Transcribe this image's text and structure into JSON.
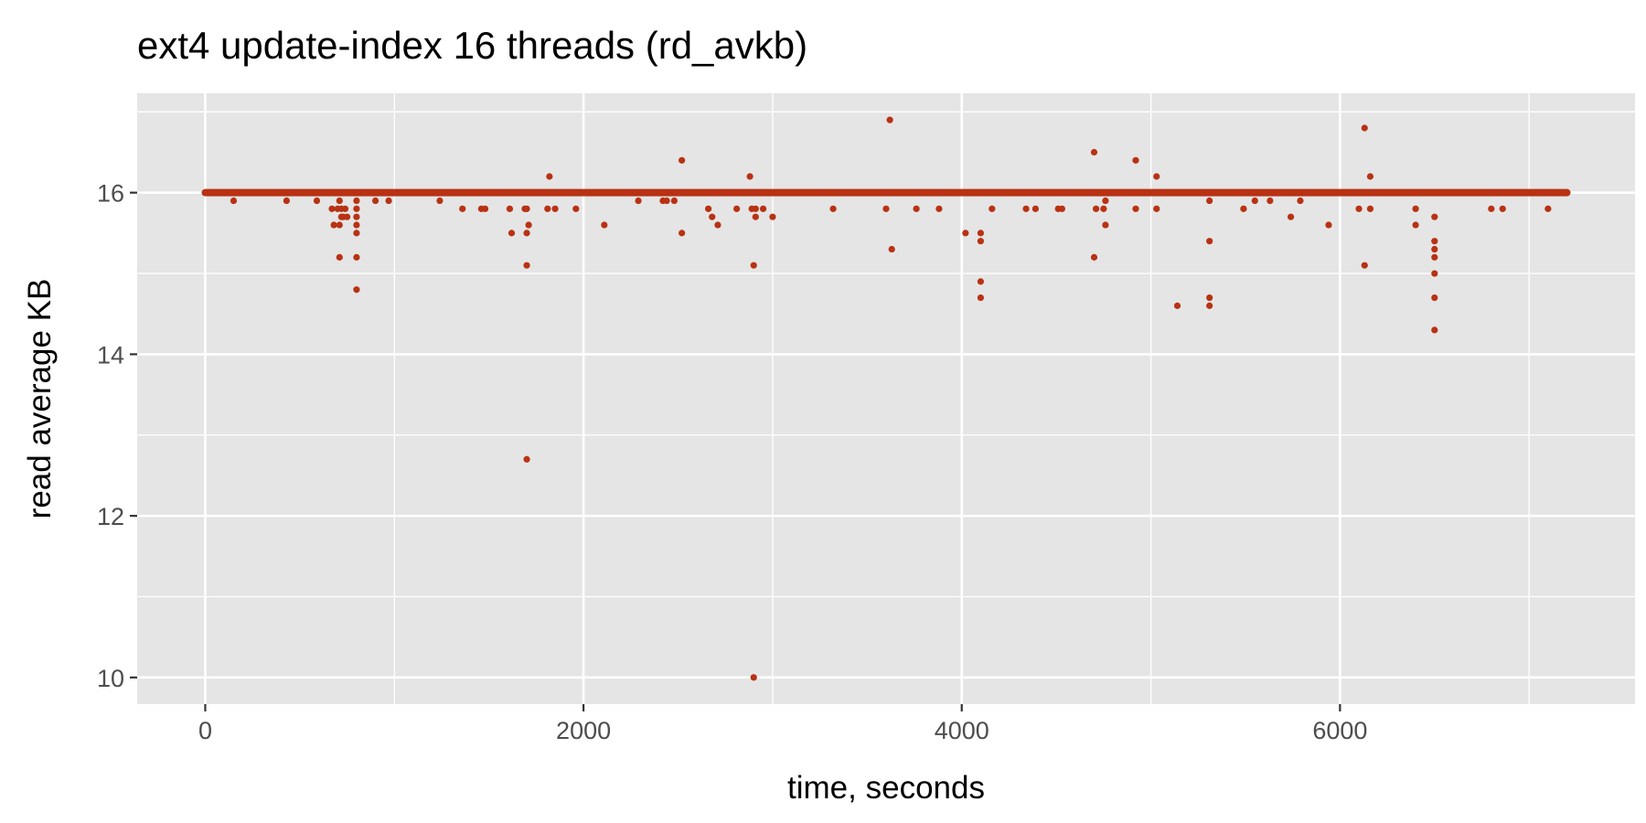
{
  "chart_data": {
    "type": "scatter",
    "title": "ext4 update-index 16 threads (rd_avkb)",
    "xlabel": "time, seconds",
    "ylabel": "read average KB",
    "xlim": [
      -360,
      7560
    ],
    "ylim": [
      9.67,
      17.23
    ],
    "x_ticks": [
      0,
      2000,
      4000,
      6000
    ],
    "y_ticks": [
      10,
      12,
      14,
      16
    ],
    "x_minor_ticks": [
      1000,
      3000,
      5000,
      7000
    ],
    "y_minor_ticks": [
      11,
      13,
      15,
      17
    ],
    "grid": true,
    "legend": "none",
    "colors": {
      "point": "#b83213",
      "panel": "#e5e5e5",
      "grid": "#ffffff"
    },
    "series": [
      {
        "dense_band": {
          "y": 16.0,
          "x_from": 0,
          "x_to": 7200
        },
        "points": [
          [
            150,
            15.9
          ],
          [
            430,
            15.9
          ],
          [
            590,
            15.9
          ],
          [
            670,
            15.8
          ],
          [
            680,
            15.6
          ],
          [
            700,
            15.8
          ],
          [
            710,
            15.6
          ],
          [
            710,
            15.9
          ],
          [
            710,
            15.2
          ],
          [
            720,
            15.8
          ],
          [
            720,
            15.7
          ],
          [
            730,
            15.7
          ],
          [
            740,
            15.8
          ],
          [
            750,
            15.7
          ],
          [
            800,
            15.9
          ],
          [
            800,
            15.8
          ],
          [
            800,
            15.7
          ],
          [
            800,
            15.6
          ],
          [
            800,
            15.5
          ],
          [
            800,
            15.2
          ],
          [
            800,
            14.8
          ],
          [
            900,
            15.9
          ],
          [
            970,
            15.9
          ],
          [
            1240,
            15.9
          ],
          [
            1360,
            15.8
          ],
          [
            1460,
            15.8
          ],
          [
            1480,
            15.8
          ],
          [
            1610,
            15.8
          ],
          [
            1620,
            15.5
          ],
          [
            1690,
            15.8
          ],
          [
            1700,
            15.8
          ],
          [
            1700,
            15.5
          ],
          [
            1700,
            15.1
          ],
          [
            1700,
            12.7
          ],
          [
            1710,
            15.6
          ],
          [
            1810,
            15.8
          ],
          [
            1820,
            16.2
          ],
          [
            1850,
            15.8
          ],
          [
            1960,
            15.8
          ],
          [
            2110,
            15.6
          ],
          [
            2290,
            15.9
          ],
          [
            2420,
            15.9
          ],
          [
            2440,
            15.9
          ],
          [
            2480,
            15.9
          ],
          [
            2520,
            16.4
          ],
          [
            2520,
            15.5
          ],
          [
            2660,
            15.8
          ],
          [
            2680,
            15.7
          ],
          [
            2710,
            15.6
          ],
          [
            2810,
            15.8
          ],
          [
            2880,
            16.2
          ],
          [
            2890,
            15.8
          ],
          [
            2900,
            15.1
          ],
          [
            2900,
            10.0
          ],
          [
            2910,
            15.8
          ],
          [
            2910,
            15.7
          ],
          [
            2950,
            15.8
          ],
          [
            3000,
            15.7
          ],
          [
            3320,
            15.8
          ],
          [
            3600,
            15.8
          ],
          [
            3620,
            16.9
          ],
          [
            3630,
            15.3
          ],
          [
            3760,
            15.8
          ],
          [
            3880,
            15.8
          ],
          [
            4020,
            15.5
          ],
          [
            4100,
            15.5
          ],
          [
            4100,
            15.4
          ],
          [
            4100,
            14.9
          ],
          [
            4100,
            14.7
          ],
          [
            4160,
            15.8
          ],
          [
            4340,
            15.8
          ],
          [
            4390,
            15.8
          ],
          [
            4510,
            15.8
          ],
          [
            4530,
            15.8
          ],
          [
            4700,
            16.5
          ],
          [
            4700,
            15.2
          ],
          [
            4710,
            15.8
          ],
          [
            4750,
            15.8
          ],
          [
            4760,
            15.9
          ],
          [
            4760,
            15.6
          ],
          [
            4920,
            16.4
          ],
          [
            4920,
            15.8
          ],
          [
            5030,
            16.2
          ],
          [
            5030,
            15.8
          ],
          [
            5140,
            14.6
          ],
          [
            5310,
            15.9
          ],
          [
            5310,
            15.4
          ],
          [
            5310,
            14.7
          ],
          [
            5310,
            14.6
          ],
          [
            5490,
            15.8
          ],
          [
            5550,
            15.9
          ],
          [
            5630,
            15.9
          ],
          [
            5740,
            15.7
          ],
          [
            5790,
            15.9
          ],
          [
            5940,
            15.6
          ],
          [
            6100,
            15.8
          ],
          [
            6130,
            16.8
          ],
          [
            6130,
            15.1
          ],
          [
            6160,
            16.2
          ],
          [
            6160,
            15.8
          ],
          [
            6400,
            15.8
          ],
          [
            6400,
            15.6
          ],
          [
            6500,
            15.7
          ],
          [
            6500,
            15.4
          ],
          [
            6500,
            15.3
          ],
          [
            6500,
            15.2
          ],
          [
            6500,
            15.0
          ],
          [
            6500,
            14.7
          ],
          [
            6500,
            14.3
          ],
          [
            6800,
            15.8
          ],
          [
            6860,
            15.8
          ],
          [
            7100,
            15.8
          ]
        ]
      }
    ]
  }
}
